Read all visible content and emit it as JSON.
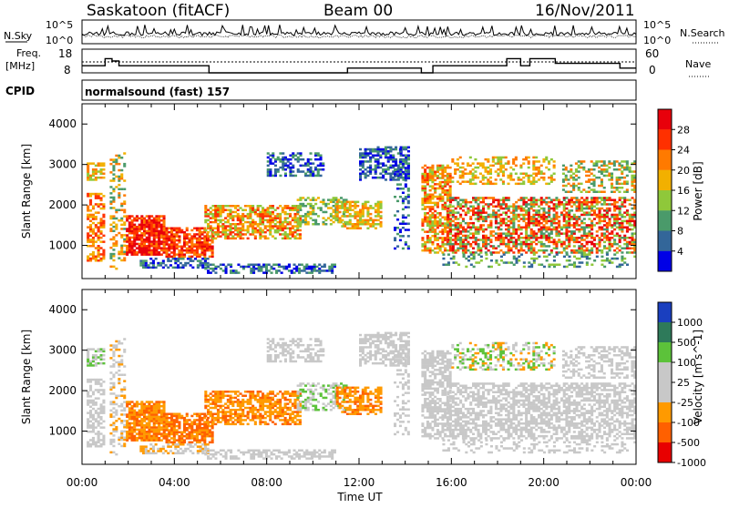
{
  "header": {
    "station": "Saskatoon (fitACF)",
    "beam": "Beam 00",
    "date": "16/Nov/2011"
  },
  "nsky_panel": {
    "left_label": "N.Sky",
    "right_label": "N.Search",
    "left_ticks": [
      "10^5",
      "10^0"
    ],
    "right_ticks": [
      "10^5",
      "10^0"
    ]
  },
  "freq_panel": {
    "left_label_line1": "Freq.",
    "left_label_line2": "[MHz]",
    "left_ticks": [
      "18",
      "8"
    ],
    "right_ticks": [
      "60",
      "0"
    ],
    "right_label": "Nave"
  },
  "cpid_panel": {
    "label": "CPID",
    "text": "normalsound (fast) 157"
  },
  "x_axis": {
    "label": "Time UT",
    "ticks": [
      "00:00",
      "04:00",
      "08:00",
      "12:00",
      "16:00",
      "20:00",
      "00:00"
    ]
  },
  "chart_data": [
    {
      "type": "heatmap",
      "panel": "power",
      "ylabel": "Slant Range [km]",
      "yticks": [
        1000,
        2000,
        3000,
        4000
      ],
      "ylim": [
        180,
        4500
      ],
      "xlim_hours": [
        0,
        24
      ],
      "colorbar": {
        "label": "Power [dB]",
        "ticks": [
          "28",
          "24",
          "20",
          "16",
          "12",
          "8",
          "4"
        ],
        "colors": [
          "#e8000b",
          "#ff3000",
          "#ff7a00",
          "#f2b000",
          "#8fc83a",
          "#4a9a6a",
          "#336699",
          "#0000e6"
        ]
      }
    },
    {
      "type": "heatmap",
      "panel": "velocity",
      "ylabel": "Slant Range [km]",
      "yticks": [
        1000,
        2000,
        3000,
        4000
      ],
      "ylim": [
        180,
        4500
      ],
      "xlim_hours": [
        0,
        24
      ],
      "colorbar": {
        "label": "Velocity [m s^-1]",
        "ticks": [
          "1000",
          "500",
          "100",
          "25",
          "-25",
          "-100",
          "-500",
          "-1000"
        ],
        "colors": [
          "#1a3fbf",
          "#2e7a5a",
          "#5cc23a",
          "#c8c8c8",
          "#c8c8c8",
          "#ff9a00",
          "#ff6000",
          "#e80000"
        ]
      }
    }
  ]
}
